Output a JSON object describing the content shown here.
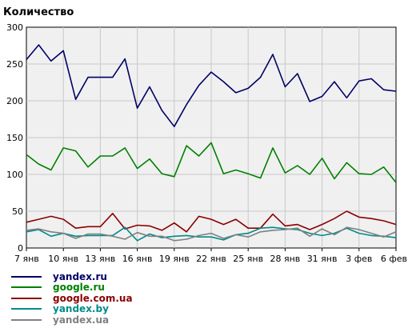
{
  "chart_data": {
    "type": "line",
    "title": "Количество",
    "xlabel": "",
    "ylabel": "",
    "ylim": [
      0,
      300
    ],
    "yticks": [
      0,
      50,
      100,
      150,
      200,
      250,
      300
    ],
    "grid": true,
    "legend_position": "bottom-left",
    "x": [
      "7 янв",
      "8 янв",
      "9 янв",
      "10 янв",
      "11 янв",
      "12 янв",
      "13 янв",
      "14 янв",
      "15 янв",
      "16 янв",
      "17 янв",
      "18 янв",
      "19 янв",
      "20 янв",
      "21 янв",
      "22 янв",
      "23 янв",
      "24 янв",
      "25 янв",
      "26 янв",
      "27 янв",
      "28 янв",
      "29 янв",
      "30 янв",
      "31 янв",
      "1 фев",
      "2 фев",
      "3 фев",
      "4 фев",
      "5 фев",
      "6 фев"
    ],
    "xtick_labels": [
      "7 янв",
      "10 янв",
      "13 янв",
      "16 янв",
      "19 янв",
      "22 янв",
      "25 янв",
      "28 янв",
      "31 янв",
      "3 фев",
      "6 фев"
    ],
    "xtick_indices": [
      0,
      3,
      6,
      9,
      12,
      15,
      18,
      21,
      24,
      27,
      30
    ],
    "series": [
      {
        "name": "yandex.ru",
        "color": "#000066",
        "values": [
          256,
          276,
          254,
          268,
          202,
          232,
          232,
          232,
          257,
          190,
          219,
          187,
          165,
          195,
          221,
          239,
          226,
          211,
          217,
          232,
          263,
          219,
          237,
          199,
          206,
          226,
          204,
          227,
          230,
          215,
          213
        ]
      },
      {
        "name": "google.ru",
        "color": "#008000",
        "values": [
          127,
          114,
          106,
          136,
          132,
          110,
          125,
          125,
          136,
          108,
          121,
          101,
          97,
          139,
          125,
          143,
          101,
          106,
          101,
          95,
          136,
          102,
          112,
          100,
          122,
          94,
          116,
          101,
          100,
          110,
          89
        ]
      },
      {
        "name": "google.com.ua",
        "color": "#8b0000",
        "values": [
          35,
          39,
          43,
          39,
          27,
          29,
          29,
          47,
          26,
          31,
          30,
          24,
          34,
          22,
          43,
          39,
          32,
          39,
          27,
          27,
          46,
          30,
          32,
          25,
          32,
          40,
          50,
          42,
          40,
          37,
          32
        ]
      },
      {
        "name": "yandex.by",
        "color": "#008b8b",
        "values": [
          22,
          25,
          16,
          20,
          16,
          17,
          17,
          17,
          28,
          10,
          19,
          14,
          16,
          17,
          15,
          15,
          11,
          18,
          20,
          27,
          28,
          26,
          25,
          20,
          17,
          20,
          27,
          20,
          17,
          16,
          14
        ]
      },
      {
        "name": "yandex.ua",
        "color": "#808080",
        "values": [
          24,
          26,
          22,
          20,
          13,
          19,
          19,
          16,
          12,
          21,
          16,
          16,
          10,
          12,
          17,
          20,
          13,
          18,
          15,
          22,
          24,
          25,
          27,
          16,
          26,
          18,
          28,
          25,
          20,
          15,
          22
        ]
      }
    ]
  }
}
